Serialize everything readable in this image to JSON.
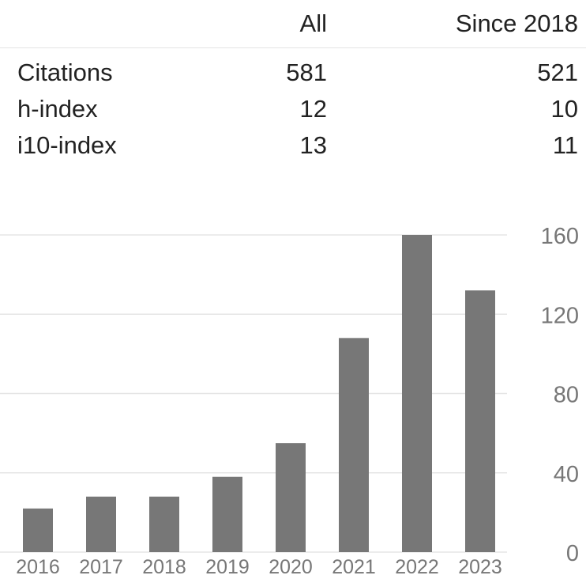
{
  "stats": {
    "header": {
      "col_all": "All",
      "col_since": "Since 2018"
    },
    "rows": [
      {
        "label": "Citations",
        "all": "581",
        "since": "521"
      },
      {
        "label": "h-index",
        "all": "12",
        "since": "10"
      },
      {
        "label": "i10-index",
        "all": "13",
        "since": "11"
      }
    ]
  },
  "colors": {
    "bar": "#777777",
    "grid": "#e5e5e5",
    "axis_text": "#777777",
    "text": "#222222"
  },
  "chart_data": {
    "type": "bar",
    "categories": [
      "2016",
      "2017",
      "2018",
      "2019",
      "2020",
      "2021",
      "2022",
      "2023"
    ],
    "values": [
      22,
      28,
      28,
      38,
      55,
      108,
      160,
      132
    ],
    "y_ticks": [
      0,
      40,
      80,
      120,
      160
    ],
    "ylim": [
      0,
      160
    ],
    "grid": true,
    "y_axis_position": "right",
    "title": "",
    "xlabel": "",
    "ylabel": ""
  }
}
